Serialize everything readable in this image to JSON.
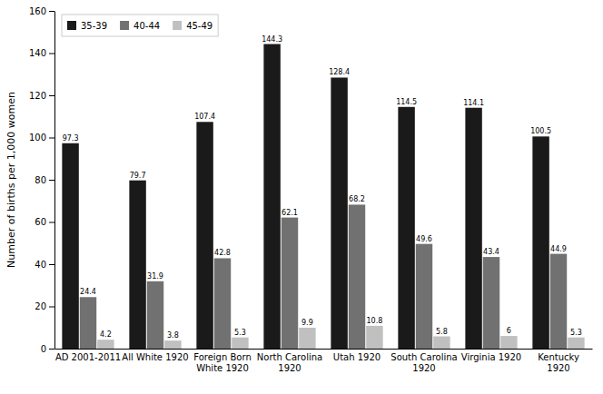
{
  "chart_data": {
    "type": "bar",
    "categories": [
      "AD 2001-2011",
      "All White 1920",
      "Foreign Born\nWhite 1920",
      "North Carolina\n1920",
      "Utah 1920",
      "South Carolina\n1920",
      "Virginia 1920",
      "Kentucky\n1920"
    ],
    "series": [
      {
        "name": "35-39",
        "color": "#1a1a1a",
        "values": [
          97.3,
          79.7,
          107.4,
          144.3,
          128.4,
          114.5,
          114.1,
          100.5
        ]
      },
      {
        "name": "40-44",
        "color": "#717171",
        "values": [
          24.4,
          31.9,
          42.8,
          62.1,
          68.2,
          49.6,
          43.4,
          44.9
        ]
      },
      {
        "name": "45-49",
        "color": "#c0c0c0",
        "values": [
          4.2,
          3.8,
          5.3,
          9.9,
          10.8,
          5.8,
          6.0,
          5.3
        ]
      }
    ],
    "ylabel": "Number of births per 1,000 women",
    "ylim": [
      0,
      160
    ],
    "yticks": [
      0,
      20,
      40,
      60,
      80,
      100,
      120,
      140,
      160
    ],
    "grid": false,
    "legend": "upper left",
    "data_labels": true
  }
}
